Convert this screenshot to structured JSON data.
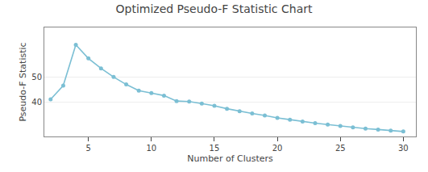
{
  "chart_data": {
    "type": "line",
    "title": "Optimized Pseudo-F Statistic Chart",
    "x_label": "Number of Clusters",
    "y_label": "Pseudo-F Statistic",
    "x": [
      2,
      3,
      4,
      5,
      6,
      7,
      8,
      9,
      10,
      11,
      12,
      13,
      14,
      15,
      16,
      17,
      18,
      19,
      20,
      21,
      22,
      23,
      24,
      25,
      26,
      27,
      28,
      29,
      30
    ],
    "values": [
      41.0,
      46.5,
      63.0,
      57.5,
      53.5,
      50.0,
      47.0,
      44.5,
      43.5,
      42.5,
      40.3,
      40.1,
      39.3,
      38.4,
      37.2,
      36.2,
      35.3,
      34.5,
      33.5,
      32.8,
      32.0,
      31.4,
      30.8,
      30.2,
      29.7,
      29.2,
      28.8,
      28.4,
      28.0
    ],
    "color": "#7bbfd4",
    "marker": "circle",
    "xlim": [
      1.5,
      31
    ],
    "xticks": [
      5,
      10,
      15,
      20,
      25,
      30
    ],
    "ylim": [
      26,
      70
    ],
    "yticks": [
      40,
      50
    ],
    "grid": "y"
  }
}
